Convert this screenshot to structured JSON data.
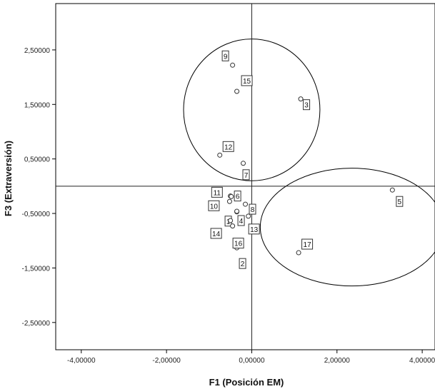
{
  "chart_data": {
    "type": "scatter",
    "xlabel": "F1 (Posición EM)",
    "ylabel": "F3 (Extraversión)",
    "xlim": [
      -4.6,
      4.3
    ],
    "ylim": [
      -3.0,
      3.35
    ],
    "xticks": [
      {
        "value": -4,
        "label": "-4,00000"
      },
      {
        "value": -2,
        "label": "-2,00000"
      },
      {
        "value": 0,
        "label": "0,00000"
      },
      {
        "value": 2,
        "label": "2,00000"
      },
      {
        "value": 4,
        "label": "4,00000"
      }
    ],
    "yticks": [
      {
        "value": 2.5,
        "label": "2,50000"
      },
      {
        "value": 1.5,
        "label": "1,50000"
      },
      {
        "value": 0.5,
        "label": "0,50000"
      },
      {
        "value": -0.5,
        "label": "-0,50000"
      },
      {
        "value": -1.5,
        "label": "-1,50000"
      },
      {
        "value": -2.5,
        "label": "-2,50000"
      }
    ],
    "reference_lines": {
      "x": 0,
      "y": 0
    },
    "points": [
      {
        "label": "1",
        "x": -0.35,
        "y": -0.47
      },
      {
        "label": "2",
        "x": -0.35,
        "y": -1.13
      },
      {
        "label": "3",
        "x": 1.15,
        "y": 1.6
      },
      {
        "label": "4",
        "x": -0.35,
        "y": -0.46
      },
      {
        "label": "5",
        "x": 3.3,
        "y": -0.07
      },
      {
        "label": "6",
        "x": -0.5,
        "y": -0.18
      },
      {
        "label": "7",
        "x": -0.2,
        "y": 0.42
      },
      {
        "label": "8",
        "x": -0.15,
        "y": -0.33
      },
      {
        "label": "9",
        "x": -0.45,
        "y": 2.22
      },
      {
        "label": "10",
        "x": -0.52,
        "y": -0.28
      },
      {
        "label": "11",
        "x": -0.48,
        "y": -0.19
      },
      {
        "label": "12",
        "x": -0.75,
        "y": 0.57
      },
      {
        "label": "13",
        "x": -0.08,
        "y": -0.55
      },
      {
        "label": "14",
        "x": -0.5,
        "y": -0.63
      },
      {
        "label": "15",
        "x": -0.35,
        "y": 1.74
      },
      {
        "label": "16",
        "x": -0.45,
        "y": -0.73
      },
      {
        "label": "17",
        "x": 1.1,
        "y": -1.22
      }
    ],
    "ellipses": [
      {
        "cx": 0.0,
        "cy": 1.4,
        "rx": 1.6,
        "ry": 1.3
      },
      {
        "cx": 2.35,
        "cy": -0.75,
        "rx": 2.15,
        "ry": 1.08
      }
    ]
  }
}
